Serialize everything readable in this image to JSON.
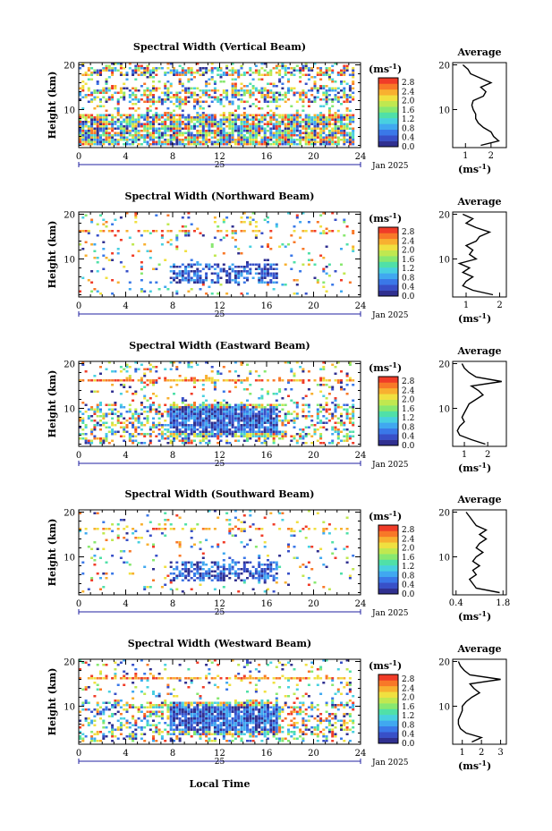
{
  "figure": {
    "xlabel": "Local Time",
    "day_label": "25",
    "month_label": "Jan 2025",
    "unit_label": "(ms",
    "unit_exp": "-1",
    "unit_close": ")",
    "ylabel": "Height (km)",
    "average_title": "Average"
  },
  "chart_data": [
    {
      "type": "heatmap",
      "title": "Spectral Width (Vertical Beam)",
      "xlabel": "Local Time",
      "ylabel": "Height (km)",
      "x_ticks": [
        0,
        4,
        8,
        12,
        16,
        20,
        24
      ],
      "xlim": [
        0,
        24
      ],
      "y_ticks": [
        10,
        20
      ],
      "ylim": [
        1.5,
        20.5
      ],
      "colorbar": {
        "ticks": [
          0.0,
          0.4,
          0.8,
          1.2,
          1.6,
          2.0,
          2.4,
          2.8
        ],
        "range": [
          0,
          3
        ]
      },
      "profile": {
        "title": "Average",
        "x_ticks": [
          1,
          2
        ],
        "xlim": [
          0.5,
          2.6
        ],
        "heights": [
          2,
          3,
          4,
          5,
          6,
          7,
          8,
          9,
          10,
          11,
          12,
          13,
          14,
          15,
          16,
          17,
          18,
          19,
          20
        ],
        "values": [
          1.6,
          2.3,
          2.1,
          2.0,
          1.7,
          1.5,
          1.4,
          1.4,
          1.3,
          1.25,
          1.3,
          1.7,
          1.8,
          1.6,
          2.0,
          1.6,
          1.2,
          1.1,
          0.9
        ]
      }
    },
    {
      "type": "heatmap",
      "title": "Spectral Width (Northward Beam)",
      "xlabel": "Local Time",
      "ylabel": "Height (km)",
      "x_ticks": [
        0,
        4,
        8,
        12,
        16,
        20,
        24
      ],
      "xlim": [
        0,
        24
      ],
      "y_ticks": [
        10,
        20
      ],
      "ylim": [
        1.5,
        20.5
      ],
      "colorbar": {
        "ticks": [
          0.0,
          0.4,
          0.8,
          1.2,
          1.6,
          2.0,
          2.4,
          2.8
        ],
        "range": [
          0,
          3
        ]
      },
      "profile": {
        "title": "Average",
        "x_ticks": [
          1,
          2
        ],
        "xlim": [
          0.6,
          2.2
        ],
        "heights": [
          2,
          3,
          4,
          5,
          6,
          7,
          8,
          9,
          10,
          11,
          12,
          13,
          14,
          15,
          16,
          17,
          18,
          19,
          20
        ],
        "values": [
          1.8,
          1.2,
          0.9,
          1.0,
          1.2,
          0.9,
          1.1,
          0.8,
          1.3,
          1.1,
          1.2,
          1.0,
          1.3,
          1.4,
          1.7,
          1.3,
          1.0,
          1.2,
          0.9
        ]
      }
    },
    {
      "type": "heatmap",
      "title": "Spectral Width (Eastward Beam)",
      "xlabel": "Local Time",
      "ylabel": "Height (km)",
      "x_ticks": [
        0,
        4,
        8,
        12,
        16,
        20,
        24
      ],
      "xlim": [
        0,
        24
      ],
      "y_ticks": [
        10,
        20
      ],
      "ylim": [
        1.5,
        20.5
      ],
      "colorbar": {
        "ticks": [
          0.0,
          0.4,
          0.8,
          1.2,
          1.6,
          2.0,
          2.4,
          2.8
        ],
        "range": [
          0,
          3
        ]
      },
      "profile": {
        "title": "Average",
        "x_ticks": [
          1,
          2
        ],
        "xlim": [
          0.5,
          2.8
        ],
        "heights": [
          2,
          3,
          4,
          5,
          6,
          7,
          8,
          9,
          10,
          11,
          12,
          13,
          14,
          15,
          16,
          17,
          18,
          19,
          20
        ],
        "values": [
          1.9,
          1.3,
          0.8,
          0.7,
          0.8,
          1.0,
          0.9,
          1.0,
          1.1,
          1.2,
          1.5,
          1.8,
          1.6,
          1.3,
          2.6,
          1.5,
          1.2,
          1.0,
          0.9
        ]
      }
    },
    {
      "type": "heatmap",
      "title": "Spectral Width (Southward Beam)",
      "xlabel": "Local Time",
      "ylabel": "Height (km)",
      "x_ticks": [
        0,
        4,
        8,
        12,
        16,
        20,
        24
      ],
      "xlim": [
        0,
        24
      ],
      "y_ticks": [
        10,
        20
      ],
      "ylim": [
        1.5,
        20.5
      ],
      "colorbar": {
        "ticks": [
          0.0,
          0.4,
          0.8,
          1.2,
          1.6,
          2.0,
          2.4,
          2.8
        ],
        "range": [
          0,
          3
        ]
      },
      "profile": {
        "title": "Average",
        "x_ticks": [
          0.4,
          1.8
        ],
        "xlim": [
          0.3,
          1.9
        ],
        "heights": [
          2,
          3,
          4,
          5,
          6,
          7,
          8,
          9,
          10,
          11,
          12,
          13,
          14,
          15,
          16,
          17,
          18,
          19,
          20
        ],
        "values": [
          1.7,
          1.0,
          0.9,
          0.8,
          1.0,
          0.9,
          1.1,
          0.9,
          1.0,
          1.2,
          1.0,
          1.1,
          1.3,
          1.1,
          1.3,
          1.0,
          0.9,
          0.8,
          0.7
        ]
      }
    },
    {
      "type": "heatmap",
      "title": "Spectral Width (Westward Beam)",
      "xlabel": "Local Time",
      "ylabel": "Height (km)",
      "x_ticks": [
        0,
        4,
        8,
        12,
        16,
        20,
        24
      ],
      "xlim": [
        0,
        24
      ],
      "y_ticks": [
        10,
        20
      ],
      "ylim": [
        1.5,
        20.5
      ],
      "colorbar": {
        "ticks": [
          0.0,
          0.4,
          0.8,
          1.2,
          1.6,
          2.0,
          2.4,
          2.8
        ],
        "range": [
          0,
          3
        ]
      },
      "profile": {
        "title": "Average",
        "x_ticks": [
          1,
          2,
          3
        ],
        "xlim": [
          0.5,
          3.3
        ],
        "heights": [
          2,
          3,
          4,
          5,
          6,
          7,
          8,
          9,
          10,
          11,
          12,
          13,
          14,
          15,
          16,
          17,
          18,
          19,
          20
        ],
        "values": [
          1.5,
          2.0,
          1.2,
          0.9,
          0.8,
          0.8,
          0.9,
          1.0,
          1.0,
          1.2,
          1.5,
          1.9,
          1.6,
          1.4,
          3.0,
          1.4,
          1.1,
          0.9,
          0.8
        ]
      }
    }
  ],
  "colormap": [
    "#303090",
    "#3850c8",
    "#3a78e8",
    "#40a8f0",
    "#48d0e0",
    "#50e0a8",
    "#88e870",
    "#c0e850",
    "#f0e040",
    "#f8b030",
    "#f87828",
    "#f03c28"
  ]
}
